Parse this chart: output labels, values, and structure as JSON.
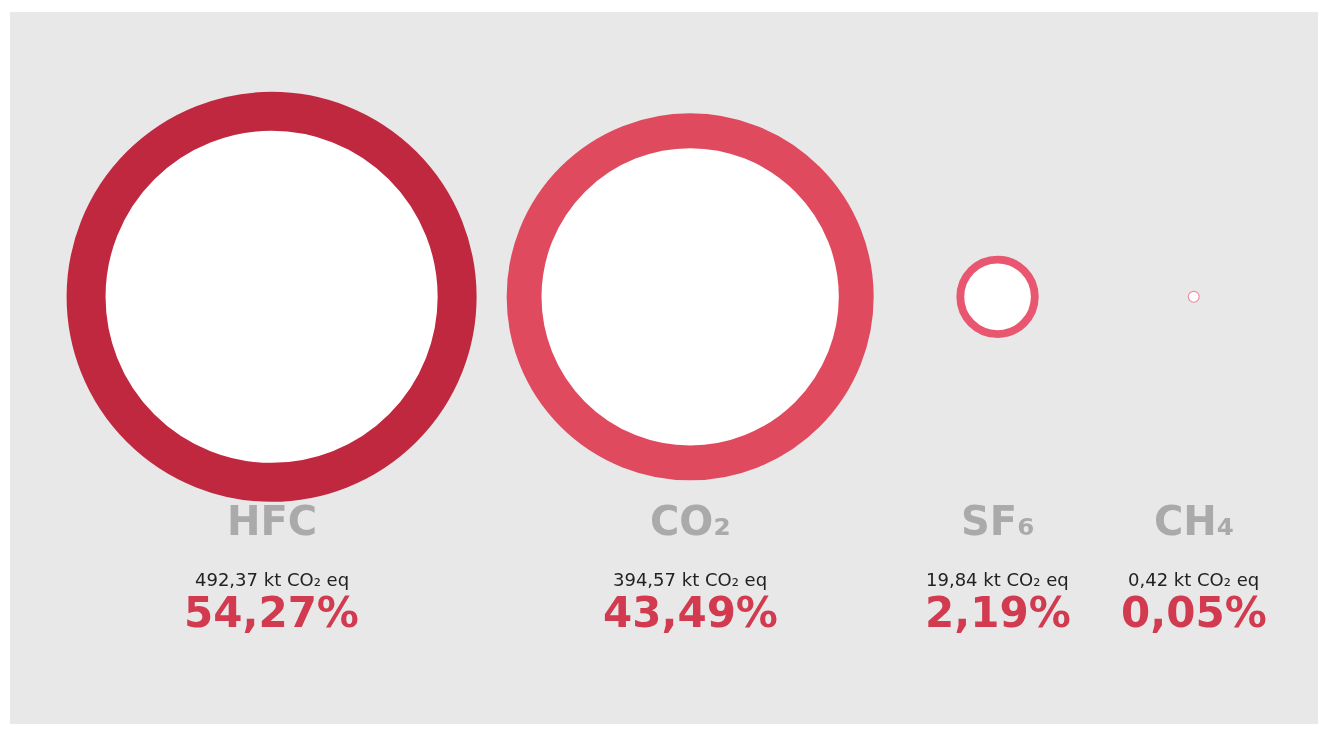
{
  "chart_data": {
    "type": "other",
    "categories": [
      "HFC",
      "CO₂",
      "SF₆",
      "CH₄"
    ],
    "series": [
      {
        "color": "#d13a4f",
        "colors": [
          "#c0283f",
          "#e04a5e",
          "#e85670",
          "#f08a9c"
        ],
        "values": [
          492.37,
          394.57,
          19.84,
          0.42
        ],
        "value_labels": [
          "492,37 kt CO₂ eq",
          "394,57 kt CO₂ eq",
          "19,84 kt CO₂ eq",
          "0,42 kt CO₂ eq"
        ]
      }
    ],
    "annotations": [
      "54,27%",
      "43,49%",
      "2,19%",
      "0,05%"
    ]
  }
}
